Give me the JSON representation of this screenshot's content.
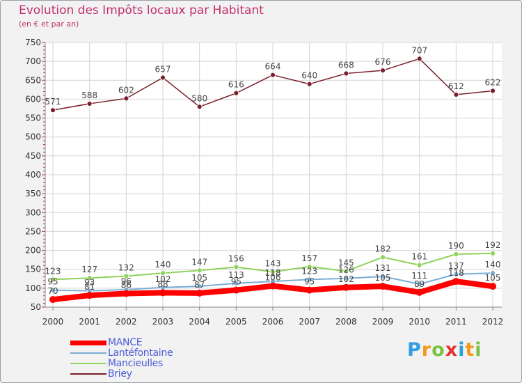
{
  "title": "Evolution des Impôts locaux par Habitant",
  "subtitle": "(en € et par an)",
  "logo": {
    "text": "Proxiti",
    "letter_colors": [
      "#2f9fe0",
      "#f39a1e",
      "#7cc242",
      "#e5322d",
      "#2f9fe0",
      "#f39a1e",
      "#7cc242"
    ]
  },
  "chart_data": {
    "type": "line",
    "x": [
      "2000",
      "2001",
      "2002",
      "2003",
      "2004",
      "2005",
      "2006",
      "2007",
      "2008",
      "2009",
      "2010",
      "2011",
      "2012"
    ],
    "ylim": [
      50,
      750
    ],
    "yticks": [
      50,
      100,
      150,
      200,
      250,
      300,
      350,
      400,
      450,
      500,
      550,
      600,
      650,
      700,
      750
    ],
    "grid": true,
    "legend_position": "bottom-left",
    "series": [
      {
        "name": "MANCE",
        "color": "#ff0000",
        "values": [
          70,
          81,
          86,
          88,
          87,
          95,
          106,
          95,
          102,
          105,
          89,
          118,
          105
        ]
      },
      {
        "name": "Lantéfontaine",
        "color": "#7aaed6",
        "values": [
          95,
          93,
          96,
          102,
          105,
          113,
          118,
          123,
          126,
          131,
          111,
          137,
          140
        ]
      },
      {
        "name": "Mancieulles",
        "color": "#8ed35a",
        "values": [
          123,
          127,
          132,
          140,
          147,
          156,
          143,
          157,
          145,
          182,
          161,
          190,
          192
        ]
      },
      {
        "name": "Briey",
        "color": "#7a1f2b",
        "values": [
          571,
          588,
          602,
          657,
          580,
          616,
          664,
          640,
          668,
          676,
          707,
          612,
          622
        ]
      }
    ]
  }
}
